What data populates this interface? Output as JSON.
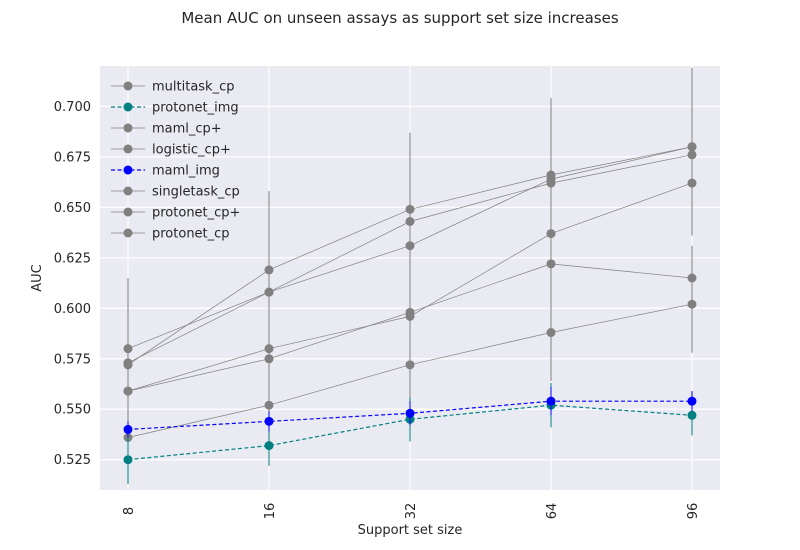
{
  "chart_data": {
    "type": "line",
    "title": "Mean AUC on unseen assays as support set size increases",
    "xlabel": "Support set size",
    "ylabel": "AUC",
    "categories": [
      "8",
      "16",
      "32",
      "64",
      "96"
    ],
    "ylim": [
      0.51,
      0.72
    ],
    "yticks": [
      "0.525",
      "0.550",
      "0.575",
      "0.600",
      "0.625",
      "0.650",
      "0.675",
      "0.700"
    ],
    "grid": true,
    "legend_position": "top-left",
    "background": "#eaeaf2",
    "series": [
      {
        "name": "multitask_cp",
        "color": "#808080",
        "style": "solid",
        "values": [
          0.559,
          0.575,
          0.598,
          0.622,
          0.615
        ],
        "errors": [
          0.015,
          0.016,
          0.017,
          0.018,
          0.016
        ]
      },
      {
        "name": "protonet_img",
        "color": "#008080",
        "style": "dashed",
        "values": [
          0.525,
          0.532,
          0.545,
          0.552,
          0.547
        ],
        "errors": [
          0.012,
          0.01,
          0.011,
          0.011,
          0.01
        ]
      },
      {
        "name": "maml_cp+",
        "color": "#808080",
        "style": "solid",
        "values": [
          0.58,
          0.608,
          0.631,
          0.664,
          0.68
        ],
        "errors": [
          0.035,
          0.04,
          0.044,
          0.04,
          0.038
        ]
      },
      {
        "name": "logistic_cp+",
        "color": "#808080",
        "style": "solid",
        "values": [
          0.572,
          0.619,
          0.649,
          0.666,
          0.68
        ],
        "errors": [
          0.043,
          0.039,
          0.038,
          0.038,
          0.039
        ]
      },
      {
        "name": "maml_img",
        "color": "#0000ff",
        "style": "dashed",
        "values": [
          0.54,
          0.544,
          0.548,
          0.554,
          0.554
        ],
        "errors": [
          0.004,
          0.005,
          0.006,
          0.007,
          0.005
        ]
      },
      {
        "name": "singletask_cp",
        "color": "#808080",
        "style": "solid",
        "values": [
          0.536,
          0.552,
          0.572,
          0.588,
          0.602
        ],
        "errors": [
          0.016,
          0.018,
          0.018,
          0.024,
          0.024
        ]
      },
      {
        "name": "protonet_cp+",
        "color": "#808080",
        "style": "solid",
        "values": [
          0.573,
          0.608,
          0.643,
          0.662,
          0.676
        ],
        "errors": [
          0.03,
          0.04,
          0.042,
          0.042,
          0.04
        ]
      },
      {
        "name": "protonet_cp",
        "color": "#808080",
        "style": "solid",
        "values": [
          0.559,
          0.58,
          0.596,
          0.637,
          0.662
        ],
        "errors": [
          0.025,
          0.028,
          0.03,
          0.035,
          0.02
        ]
      }
    ]
  }
}
